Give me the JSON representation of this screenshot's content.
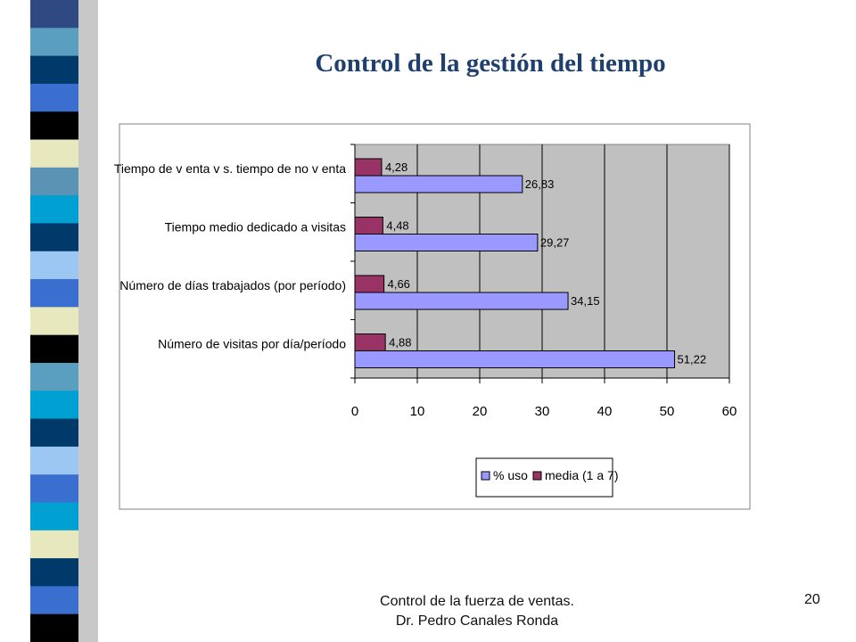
{
  "slide": {
    "title": "Control de la gestión del tiempo",
    "footer_line1": "Control de la fuerza de ventas.",
    "footer_line2": "Dr. Pedro Canales Ronda",
    "page_number": "20"
  },
  "theme": {
    "band_colors": [
      "#2f4a82",
      "#5a9fbf",
      "#003a6a",
      "#3a6fcf",
      "#000000",
      "#e8e8bf",
      "#5b93b5",
      "#00a0d2",
      "#003a6a",
      "#9cc7f2",
      "#3a6fcf",
      "#e8e8bf",
      "#000000",
      "#5a9fbf",
      "#00a0d2",
      "#003a6a",
      "#9cc7f2",
      "#3a6fcf",
      "#00a0d2",
      "#e8e8bf",
      "#003a6a",
      "#3a6fcf",
      "#000000"
    ],
    "series_colors": [
      "#9999ff",
      "#993366"
    ],
    "plot_background": "#c0c0c0"
  },
  "chart_data": {
    "type": "bar",
    "orientation": "horizontal",
    "categories": [
      "Tiempo de venta vs. tiempo de no venta",
      "Tiempo medio dedicado a visitas",
      "Número de días trabajados (por período)",
      "Número de visitas por día/período"
    ],
    "category_labels": [
      "Tiempo de v enta v s. tiempo de no v enta",
      "Tiempo medio dedicado a visitas",
      "Número de días trabajados (por período)",
      "Número de visitas por día/período"
    ],
    "series": [
      {
        "name": "% uso",
        "values": [
          26.83,
          29.27,
          34.15,
          51.22
        ],
        "labels": [
          "26,83",
          "29,27",
          "34,15",
          "51,22"
        ]
      },
      {
        "name": "media (1 a 7)",
        "values": [
          4.28,
          4.48,
          4.66,
          4.88
        ],
        "labels": [
          "4,28",
          "4,48",
          "4,66",
          "4,88"
        ]
      }
    ],
    "xlim": [
      0,
      60
    ],
    "xticks": [
      0,
      10,
      20,
      30,
      40,
      50,
      60
    ],
    "grid": true,
    "legend": "bottom"
  }
}
